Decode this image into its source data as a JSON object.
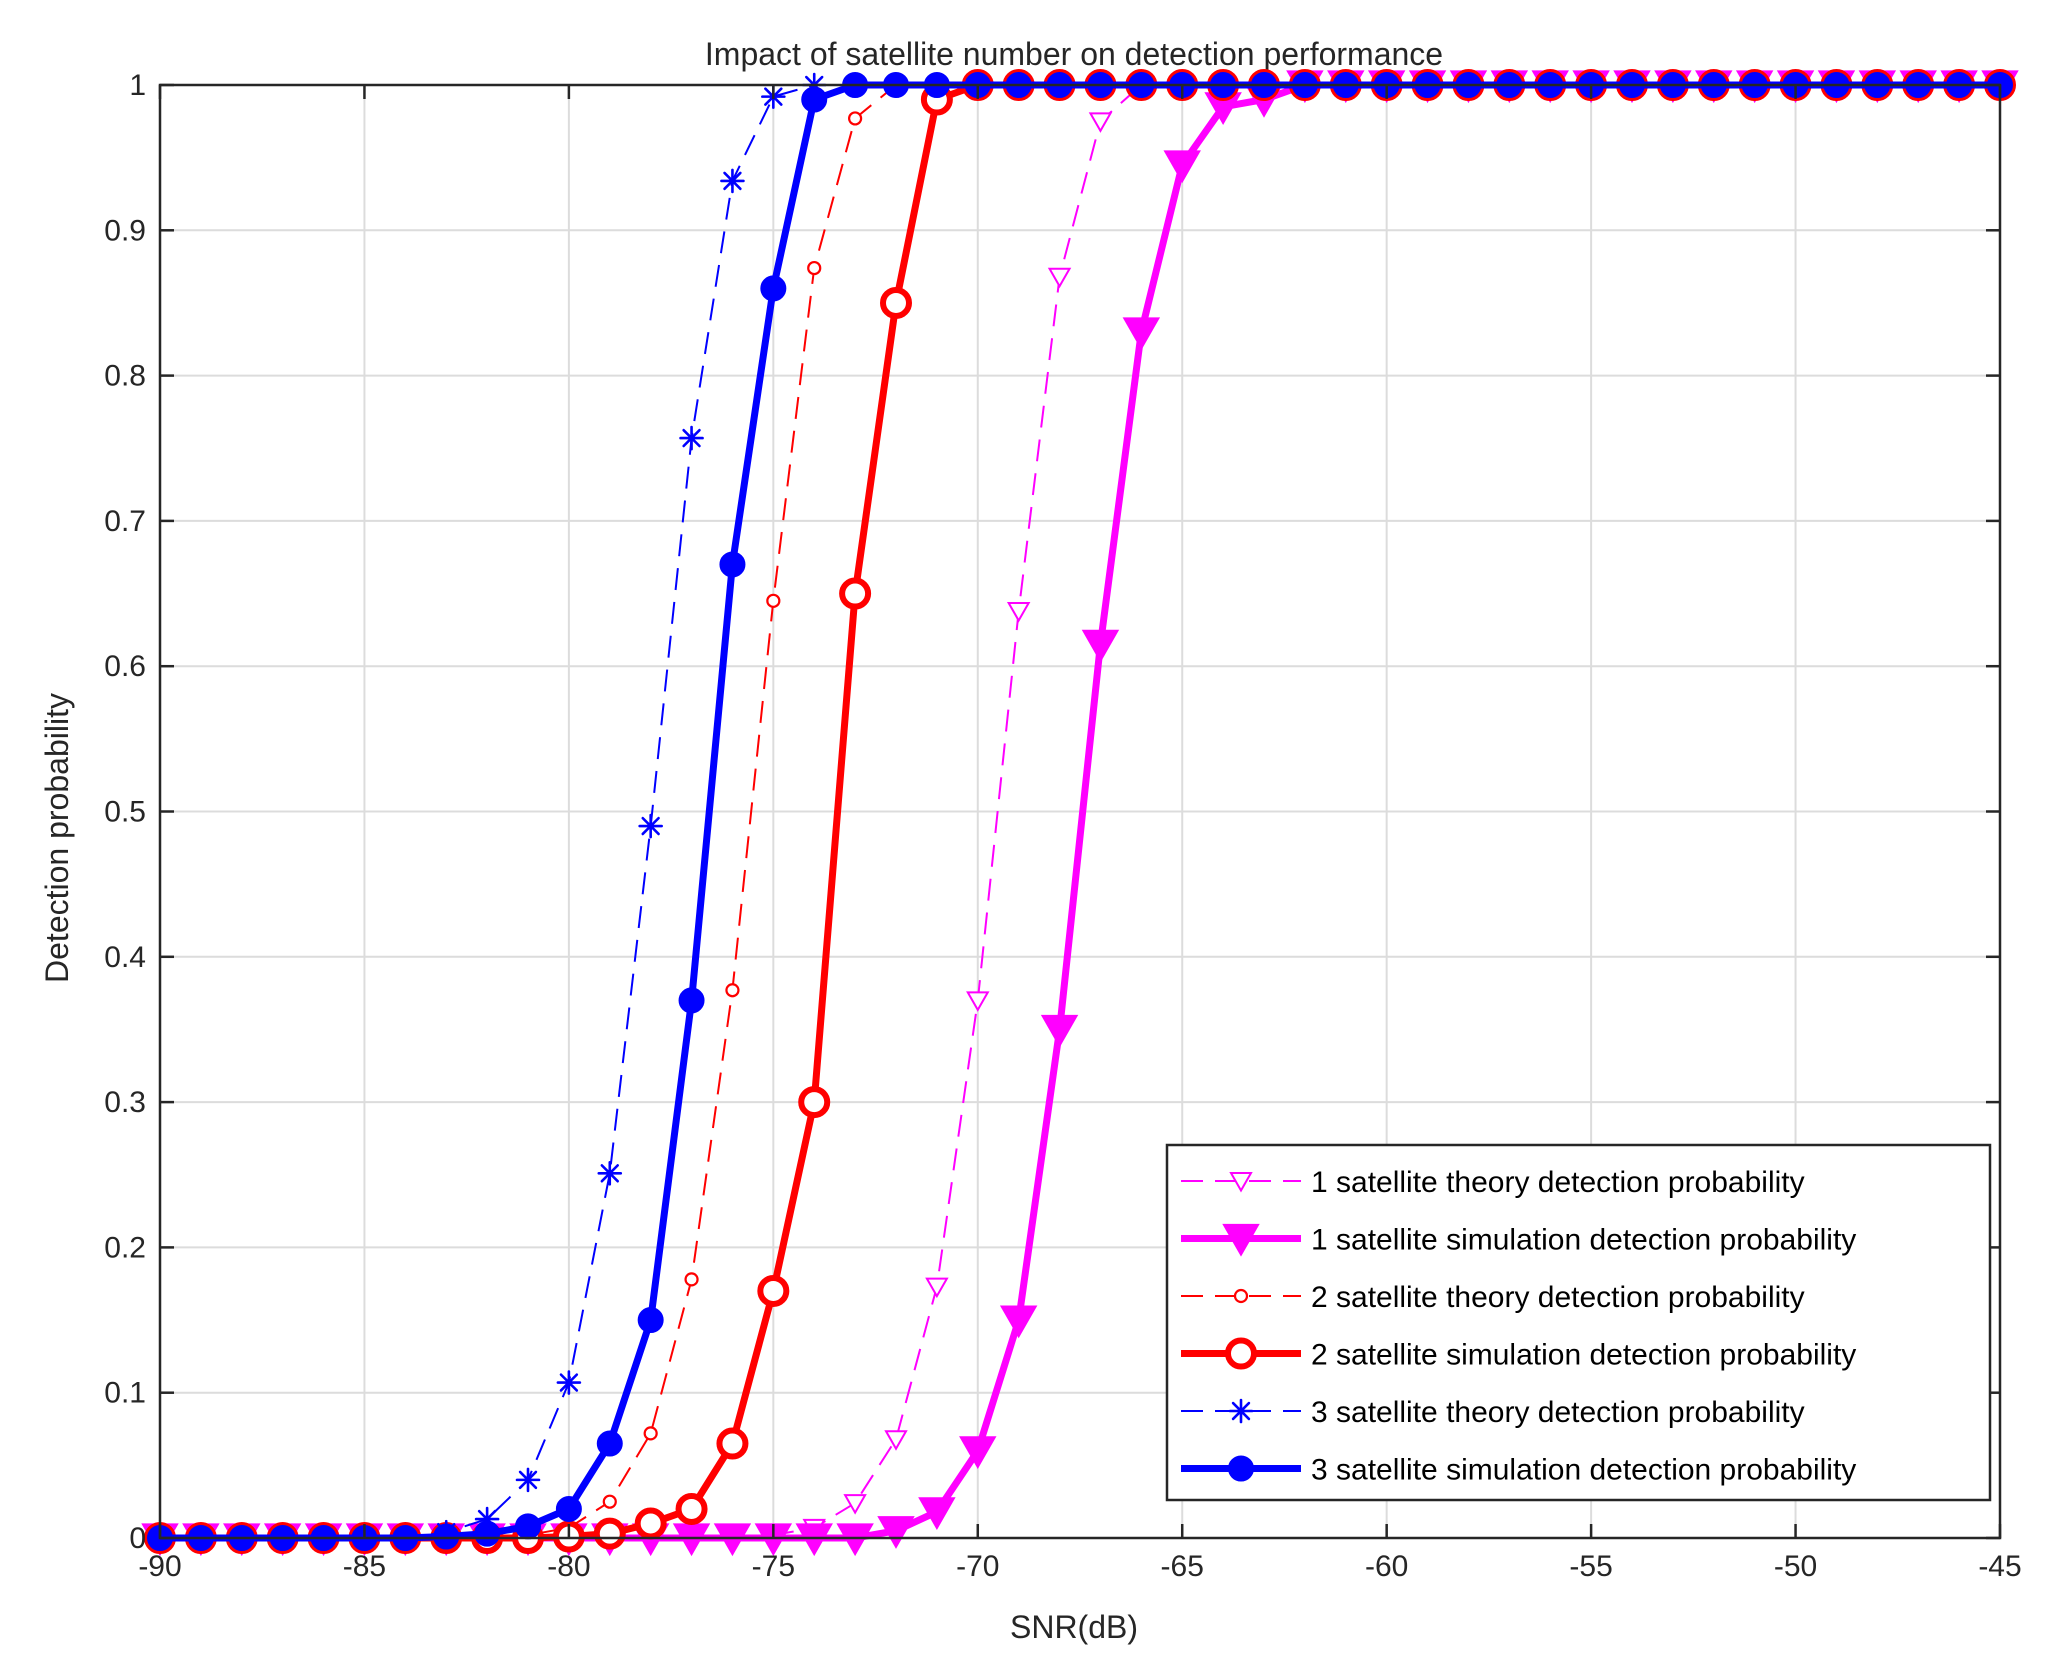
{
  "chart_data": {
    "type": "line",
    "title": "Impact of satellite number on detection performance",
    "xlabel": "SNR(dB)",
    "ylabel": "Detection probability",
    "xlim": [
      -90,
      -45
    ],
    "ylim": [
      0,
      1
    ],
    "xticks": [
      -90,
      -85,
      -80,
      -75,
      -70,
      -65,
      -60,
      -55,
      -50,
      -45
    ],
    "xtick_labels": [
      "-90",
      "-85",
      "-80",
      "-75",
      "-70",
      "-65",
      "-60",
      "-55",
      "-50",
      "-45"
    ],
    "yticks": [
      0,
      0.1,
      0.2,
      0.3,
      0.4,
      0.5,
      0.6,
      0.7,
      0.8,
      0.9,
      1
    ],
    "ytick_labels": [
      "0",
      "0.1",
      "0.2",
      "0.3",
      "0.4",
      "0.5",
      "0.6",
      "0.7",
      "0.8",
      "0.9",
      "1"
    ],
    "grid": true,
    "legend_position": "bottom-right",
    "x": [
      -90,
      -89,
      -88,
      -87,
      -86,
      -85,
      -84,
      -83,
      -82,
      -81,
      -80,
      -79,
      -78,
      -77,
      -76,
      -75,
      -74,
      -73,
      -72,
      -71,
      -70,
      -69,
      -68,
      -67,
      -66,
      -65,
      -64,
      -63,
      -62,
      -61,
      -60,
      -59,
      -58,
      -57,
      -56,
      -55,
      -54,
      -53,
      -52,
      -51,
      -50,
      -49,
      -48,
      -47,
      -46,
      -45
    ],
    "series": [
      {
        "name": "1 satellite theory detection probability",
        "color": "#ff00ff",
        "line_style": "dashed",
        "line_width": "thin",
        "marker": "triangle-down-open",
        "values": [
          0,
          0,
          0,
          0,
          0,
          0,
          0,
          0,
          0,
          0,
          0,
          0,
          0,
          0,
          0.001,
          0.002,
          0.007,
          0.024,
          0.068,
          0.173,
          0.37,
          0.638,
          0.868,
          0.975,
          1,
          1,
          1,
          1,
          1,
          1,
          1,
          1,
          1,
          1,
          1,
          1,
          1,
          1,
          1,
          1,
          1,
          1,
          1,
          1,
          1,
          1
        ]
      },
      {
        "name": "1 satellite simulation detection probability",
        "color": "#ff00ff",
        "line_style": "solid",
        "line_width": "thick",
        "marker": "triangle-down-filled",
        "values": [
          0,
          0,
          0,
          0,
          0,
          0,
          0,
          0,
          0,
          0,
          0,
          0,
          0,
          0,
          0,
          0,
          0,
          0,
          0.005,
          0.018,
          0.06,
          0.15,
          0.35,
          0.615,
          0.83,
          0.945,
          0.985,
          0.99,
          1,
          1,
          1,
          1,
          1,
          1,
          1,
          1,
          1,
          1,
          1,
          1,
          1,
          1,
          1,
          1,
          1,
          1
        ]
      },
      {
        "name": "2 satellite theory detection probability",
        "color": "#ff0000",
        "line_style": "dashed",
        "line_width": "thin",
        "marker": "circle-open-small",
        "values": [
          0,
          0,
          0,
          0,
          0,
          0,
          0,
          0,
          0,
          0.002,
          0.007,
          0.025,
          0.072,
          0.178,
          0.377,
          0.645,
          0.874,
          0.977,
          1,
          1,
          1,
          1,
          1,
          1,
          1,
          1,
          1,
          1,
          1,
          1,
          1,
          1,
          1,
          1,
          1,
          1,
          1,
          1,
          1,
          1,
          1,
          1,
          1,
          1,
          1,
          1
        ]
      },
      {
        "name": "2 satellite simulation detection probability",
        "color": "#ff0000",
        "line_style": "solid",
        "line_width": "thick",
        "marker": "circle-open-large",
        "values": [
          0,
          0,
          0,
          0,
          0,
          0,
          0,
          0,
          0,
          0,
          0.001,
          0.003,
          0.01,
          0.02,
          0.065,
          0.17,
          0.3,
          0.65,
          0.85,
          0.99,
          1,
          1,
          1,
          1,
          1,
          1,
          1,
          1,
          1,
          1,
          1,
          1,
          1,
          1,
          1,
          1,
          1,
          1,
          1,
          1,
          1,
          1,
          1,
          1,
          1,
          1
        ]
      },
      {
        "name": "3 satellite theory detection probability",
        "color": "#0000ff",
        "line_style": "dashed",
        "line_width": "thin",
        "marker": "asterisk",
        "values": [
          0,
          0,
          0,
          0,
          0,
          0,
          0,
          0.004,
          0.013,
          0.04,
          0.107,
          0.251,
          0.49,
          0.757,
          0.934,
          0.992,
          1,
          1,
          1,
          1,
          1,
          1,
          1,
          1,
          1,
          1,
          1,
          1,
          1,
          1,
          1,
          1,
          1,
          1,
          1,
          1,
          1,
          1,
          1,
          1,
          1,
          1,
          1,
          1,
          1,
          1
        ]
      },
      {
        "name": "3 satellite simulation detection probability",
        "color": "#0000ff",
        "line_style": "solid",
        "line_width": "thick",
        "marker": "circle-filled",
        "values": [
          0,
          0,
          0,
          0,
          0,
          0,
          0,
          0.001,
          0.003,
          0.008,
          0.02,
          0.065,
          0.15,
          0.37,
          0.67,
          0.86,
          0.99,
          1,
          1,
          1,
          1,
          1,
          1,
          1,
          1,
          1,
          1,
          1,
          1,
          1,
          1,
          1,
          1,
          1,
          1,
          1,
          1,
          1,
          1,
          1,
          1,
          1,
          1,
          1,
          1,
          1
        ]
      }
    ]
  }
}
